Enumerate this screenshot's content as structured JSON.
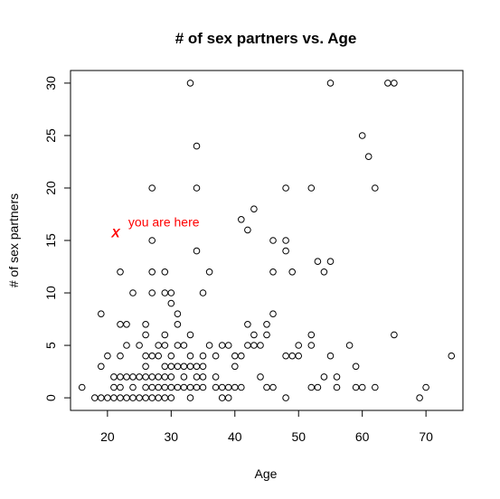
{
  "chart_data": {
    "type": "scatter",
    "title": "# of sex partners vs. Age",
    "xlabel": "Age",
    "ylabel": "# of sex partners",
    "xlim": [
      14.2,
      75.8
    ],
    "ylim": [
      -1.2,
      31.2
    ],
    "xticks": [
      20,
      30,
      40,
      50,
      60,
      70
    ],
    "yticks": [
      0,
      5,
      10,
      15,
      20,
      25,
      30
    ],
    "grid": false,
    "marker": "open-circle",
    "colors": {
      "points": "#000000",
      "annotation": "#ff0000"
    },
    "annotation": {
      "text": "you are here",
      "marker": "X",
      "x": 21,
      "y": 16
    },
    "points": [
      [
        16,
        1
      ],
      [
        18,
        0
      ],
      [
        19,
        0
      ],
      [
        19,
        3
      ],
      [
        19,
        8
      ],
      [
        20,
        0
      ],
      [
        20,
        4
      ],
      [
        21,
        0
      ],
      [
        21,
        1
      ],
      [
        21,
        2
      ],
      [
        22,
        0
      ],
      [
        22,
        1
      ],
      [
        22,
        2
      ],
      [
        22,
        4
      ],
      [
        22,
        7
      ],
      [
        22,
        12
      ],
      [
        23,
        0
      ],
      [
        23,
        2
      ],
      [
        23,
        5
      ],
      [
        23,
        7
      ],
      [
        24,
        0
      ],
      [
        24,
        1
      ],
      [
        24,
        2
      ],
      [
        24,
        10
      ],
      [
        25,
        0
      ],
      [
        25,
        2
      ],
      [
        25,
        5
      ],
      [
        26,
        0
      ],
      [
        26,
        1
      ],
      [
        26,
        2
      ],
      [
        26,
        3
      ],
      [
        26,
        4
      ],
      [
        26,
        6
      ],
      [
        26,
        7
      ],
      [
        27,
        0
      ],
      [
        27,
        1
      ],
      [
        27,
        2
      ],
      [
        27,
        4
      ],
      [
        27,
        10
      ],
      [
        27,
        12
      ],
      [
        27,
        15
      ],
      [
        27,
        20
      ],
      [
        28,
        0
      ],
      [
        28,
        1
      ],
      [
        28,
        2
      ],
      [
        28,
        4
      ],
      [
        28,
        5
      ],
      [
        29,
        0
      ],
      [
        29,
        1
      ],
      [
        29,
        2
      ],
      [
        29,
        3
      ],
      [
        29,
        5
      ],
      [
        29,
        6
      ],
      [
        29,
        10
      ],
      [
        29,
        12
      ],
      [
        30,
        0
      ],
      [
        30,
        1
      ],
      [
        30,
        2
      ],
      [
        30,
        3
      ],
      [
        30,
        4
      ],
      [
        30,
        9
      ],
      [
        30,
        10
      ],
      [
        31,
        1
      ],
      [
        31,
        3
      ],
      [
        31,
        5
      ],
      [
        31,
        7
      ],
      [
        31,
        8
      ],
      [
        32,
        1
      ],
      [
        32,
        2
      ],
      [
        32,
        3
      ],
      [
        32,
        5
      ],
      [
        33,
        0
      ],
      [
        33,
        1
      ],
      [
        33,
        3
      ],
      [
        33,
        4
      ],
      [
        33,
        6
      ],
      [
        33,
        30
      ],
      [
        34,
        1
      ],
      [
        34,
        2
      ],
      [
        34,
        3
      ],
      [
        34,
        14
      ],
      [
        34,
        20
      ],
      [
        34,
        24
      ],
      [
        35,
        1
      ],
      [
        35,
        2
      ],
      [
        35,
        3
      ],
      [
        35,
        4
      ],
      [
        35,
        10
      ],
      [
        36,
        5
      ],
      [
        36,
        12
      ],
      [
        37,
        1
      ],
      [
        37,
        2
      ],
      [
        37,
        4
      ],
      [
        38,
        0
      ],
      [
        38,
        1
      ],
      [
        38,
        5
      ],
      [
        39,
        0
      ],
      [
        39,
        1
      ],
      [
        39,
        5
      ],
      [
        40,
        1
      ],
      [
        40,
        3
      ],
      [
        40,
        4
      ],
      [
        41,
        1
      ],
      [
        41,
        4
      ],
      [
        41,
        17
      ],
      [
        42,
        5
      ],
      [
        42,
        7
      ],
      [
        42,
        16
      ],
      [
        43,
        5
      ],
      [
        43,
        6
      ],
      [
        43,
        18
      ],
      [
        44,
        2
      ],
      [
        44,
        5
      ],
      [
        45,
        1
      ],
      [
        45,
        6
      ],
      [
        45,
        7
      ],
      [
        46,
        1
      ],
      [
        46,
        8
      ],
      [
        46,
        12
      ],
      [
        46,
        15
      ],
      [
        48,
        0
      ],
      [
        48,
        4
      ],
      [
        48,
        14
      ],
      [
        48,
        15
      ],
      [
        48,
        20
      ],
      [
        49,
        4
      ],
      [
        49,
        12
      ],
      [
        50,
        4
      ],
      [
        50,
        5
      ],
      [
        52,
        1
      ],
      [
        52,
        5
      ],
      [
        52,
        6
      ],
      [
        52,
        20
      ],
      [
        53,
        1
      ],
      [
        53,
        13
      ],
      [
        54,
        2
      ],
      [
        54,
        12
      ],
      [
        55,
        4
      ],
      [
        55,
        13
      ],
      [
        55,
        30
      ],
      [
        56,
        1
      ],
      [
        56,
        2
      ],
      [
        58,
        5
      ],
      [
        59,
        1
      ],
      [
        59,
        3
      ],
      [
        60,
        1
      ],
      [
        60,
        25
      ],
      [
        61,
        23
      ],
      [
        62,
        1
      ],
      [
        62,
        20
      ],
      [
        64,
        30
      ],
      [
        65,
        6
      ],
      [
        65,
        30
      ],
      [
        69,
        0
      ],
      [
        70,
        1
      ],
      [
        74,
        4
      ]
    ]
  }
}
